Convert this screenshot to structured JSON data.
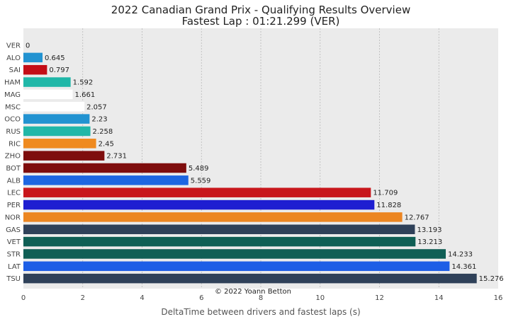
{
  "chart_data": {
    "type": "bar",
    "orientation": "horizontal",
    "title": "2022 Canadian Grand Prix - Qualifying Results Overview",
    "subtitle": "Fastest Lap : 01:21.299 (VER)",
    "xlabel": "DeltaTime between drivers and fastest laps (s)",
    "ylabel": "",
    "xlim": [
      0,
      16
    ],
    "xticks": [
      0,
      2,
      4,
      6,
      8,
      10,
      12,
      14,
      16
    ],
    "grid": true,
    "annotation": "© 2022 Yoann Betton",
    "categories": [
      "VER",
      "ALO",
      "SAI",
      "HAM",
      "MAG",
      "MSC",
      "OCO",
      "RUS",
      "RIC",
      "ZHO",
      "BOT",
      "ALB",
      "LEC",
      "PER",
      "NOR",
      "GAS",
      "VET",
      "STR",
      "LAT",
      "TSU"
    ],
    "values": [
      0,
      0.645,
      0.797,
      1.592,
      1.661,
      2.057,
      2.23,
      2.258,
      2.45,
      2.731,
      5.489,
      5.559,
      11.709,
      11.828,
      12.767,
      13.193,
      13.213,
      14.233,
      14.361,
      15.276
    ],
    "value_labels": [
      "0",
      "0.645",
      "0.797",
      "1.592",
      "1.661",
      "2.057",
      "2.23",
      "2.258",
      "2.45",
      "2.731",
      "5.489",
      "5.559",
      "11.709",
      "11.828",
      "12.767",
      "13.193",
      "13.213",
      "14.233",
      "14.361",
      "15.276"
    ],
    "colors": [
      "#1e41ff",
      "#2293d1",
      "#c40d16",
      "#20b7a8",
      "#ffffff",
      "#ffffff",
      "#2293d1",
      "#20b7a8",
      "#ef8a1f",
      "#7e0d0d",
      "#7e0d0d",
      "#1d66e1",
      "#c8161c",
      "#1e1ed1",
      "#ec8622",
      "#2f4159",
      "#0f5f55",
      "#0f5f55",
      "#1d5ee6",
      "#2f4159"
    ]
  }
}
